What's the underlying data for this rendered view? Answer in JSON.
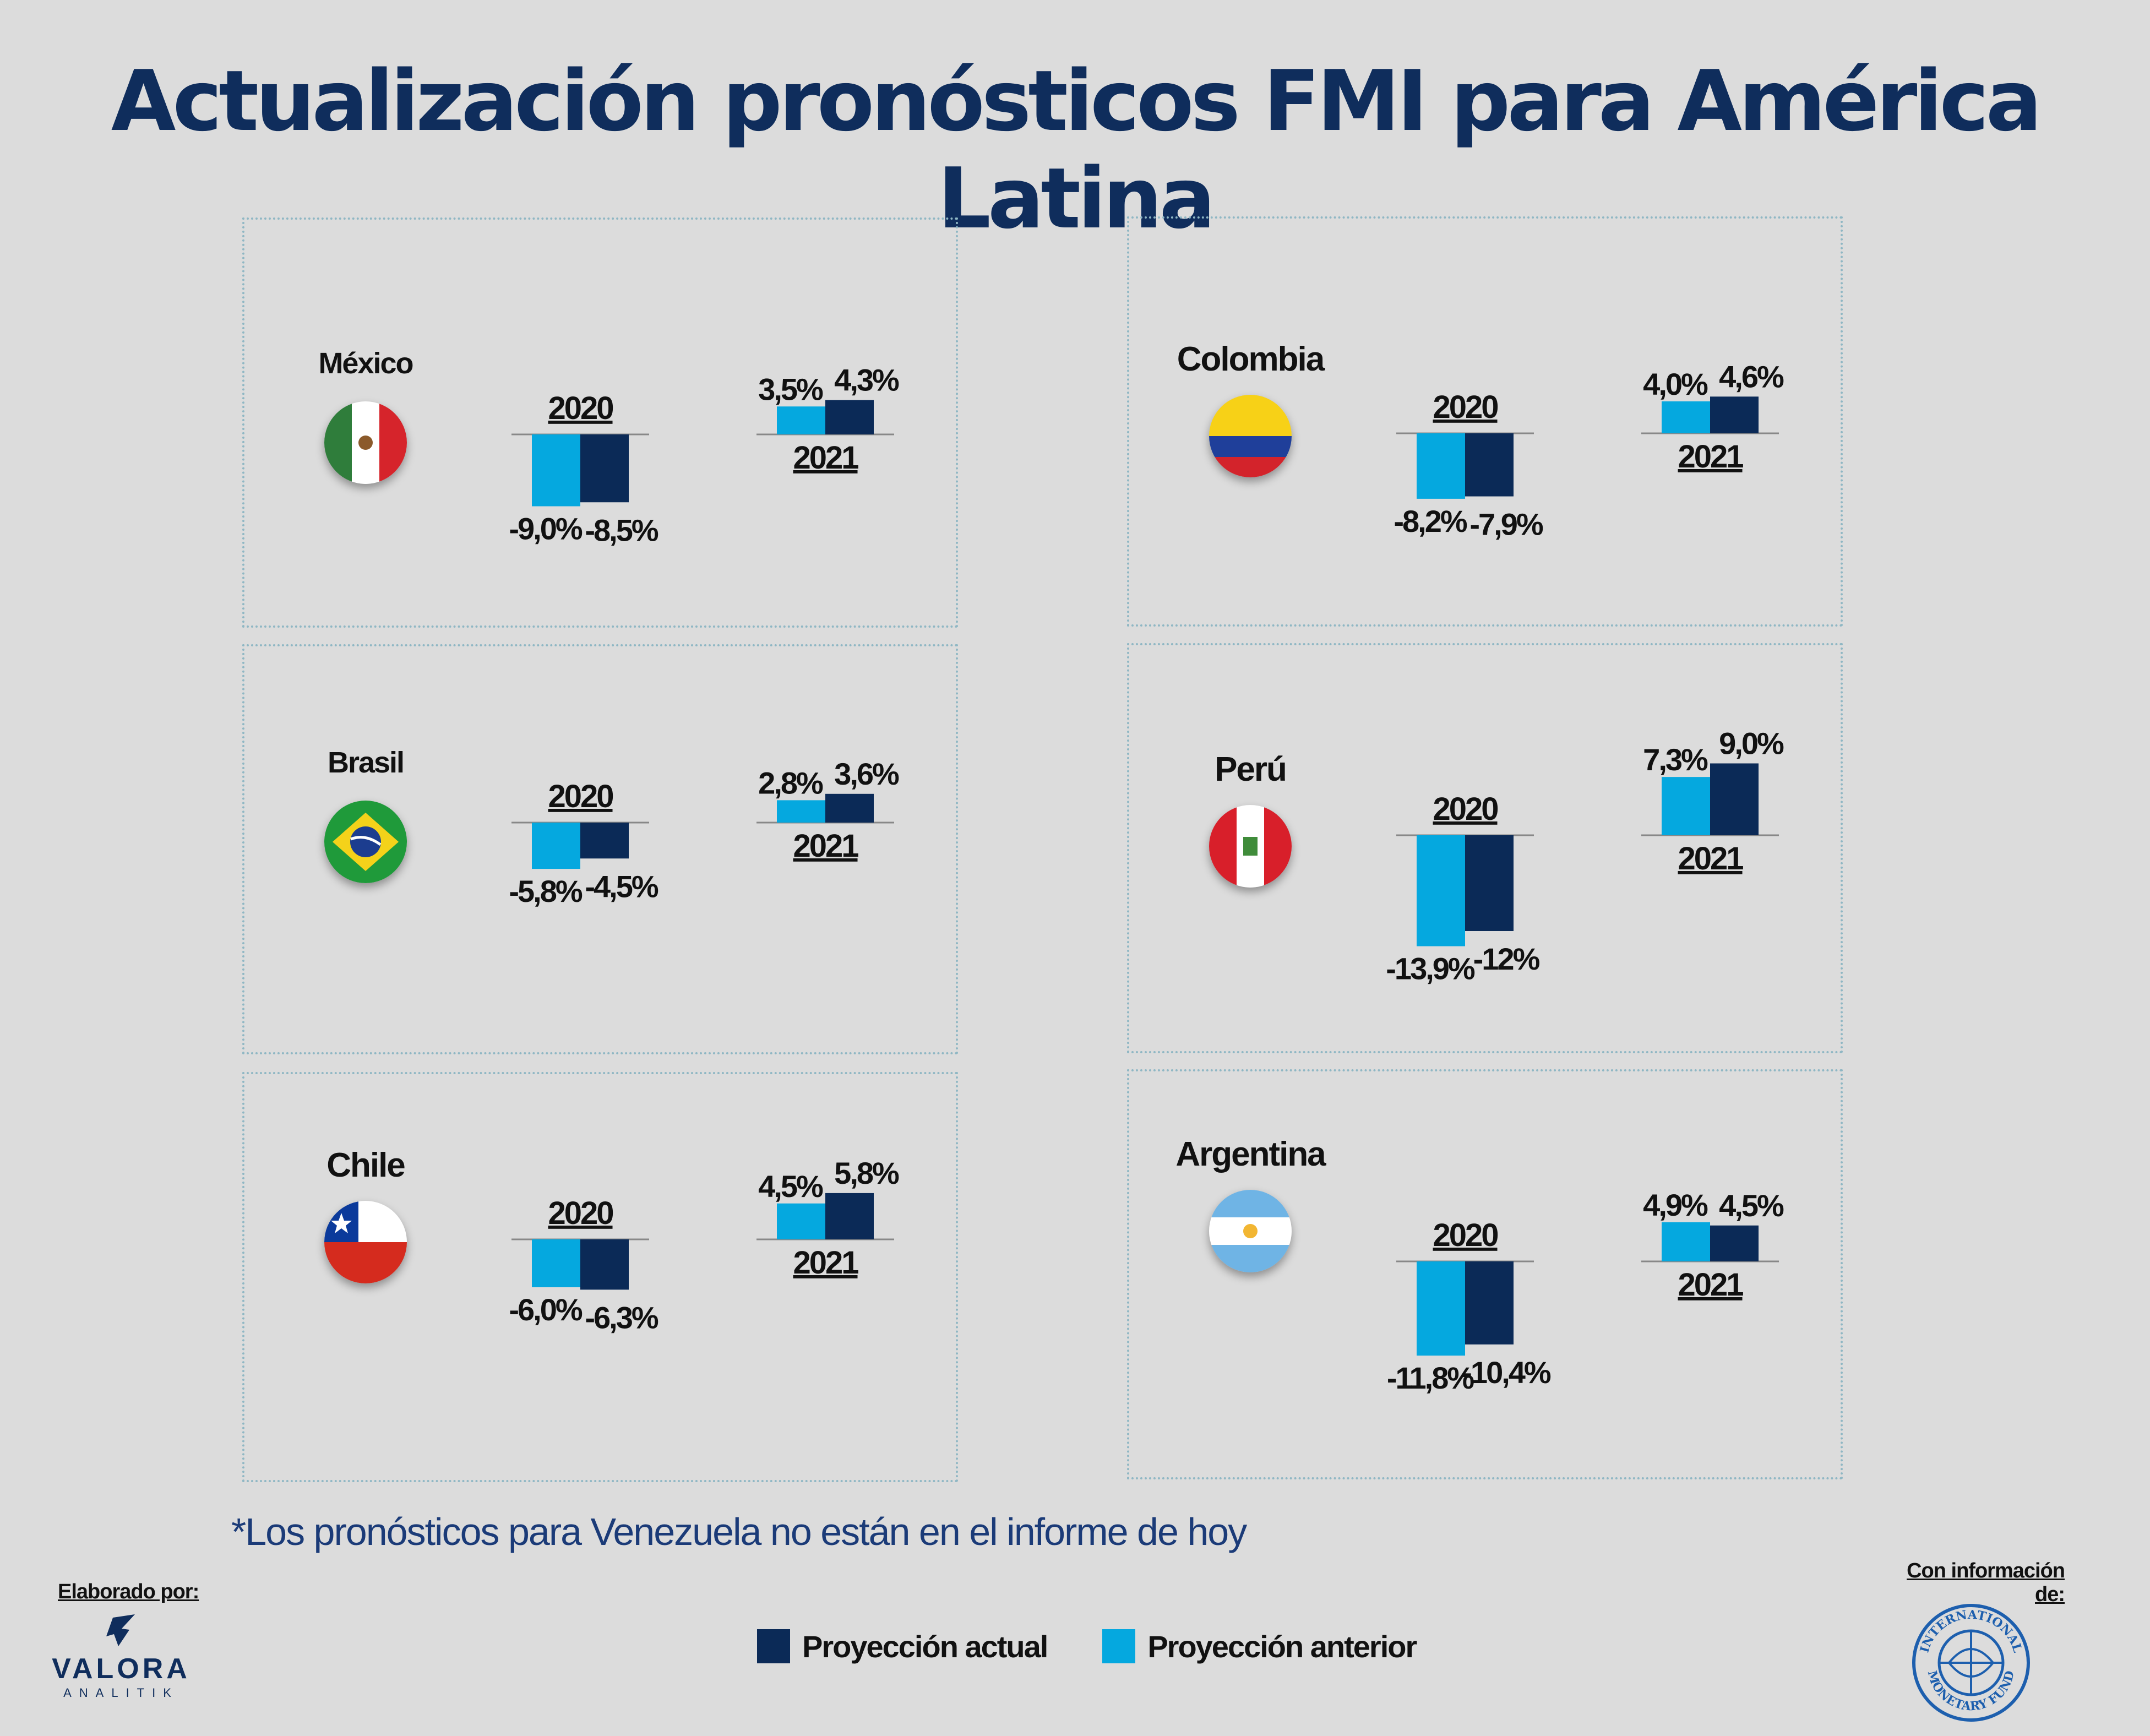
{
  "title": "Actualización pronósticos FMI para América Latina",
  "colors": {
    "actual": "#0b2a57",
    "anterior": "#05a8df",
    "background": "#dcdcdc",
    "title": "#0f2d5c"
  },
  "chart_data": {
    "type": "bar",
    "title": "Actualización pronósticos FMI para América Latina",
    "categories": [
      "2020",
      "2021"
    ],
    "legend": [
      {
        "name": "Proyección actual",
        "color": "#0b2a57"
      },
      {
        "name": "Proyección anterior",
        "color": "#05a8df"
      }
    ],
    "panels": [
      {
        "country": "México",
        "flag": "mexico-flag",
        "series": [
          {
            "name": "Proyección anterior",
            "values": [
              -9.0,
              3.5
            ],
            "labels": [
              "-9,0%",
              "3,5%"
            ]
          },
          {
            "name": "Proyección actual",
            "values": [
              -8.5,
              4.3
            ],
            "labels": [
              "-8,5%",
              "4,3%"
            ]
          }
        ]
      },
      {
        "country": "Colombia",
        "flag": "colombia-flag",
        "series": [
          {
            "name": "Proyección anterior",
            "values": [
              -8.2,
              4.0
            ],
            "labels": [
              "-8,2%",
              "4,0%"
            ]
          },
          {
            "name": "Proyección actual",
            "values": [
              -7.9,
              4.6
            ],
            "labels": [
              "-7,9%",
              "4,6%"
            ]
          }
        ]
      },
      {
        "country": "Brasil",
        "flag": "brazil-flag",
        "series": [
          {
            "name": "Proyección anterior",
            "values": [
              -5.8,
              2.8
            ],
            "labels": [
              "-5,8%",
              "2,8%"
            ]
          },
          {
            "name": "Proyección actual",
            "values": [
              -4.5,
              3.6
            ],
            "labels": [
              "-4,5%",
              "3,6%"
            ]
          }
        ]
      },
      {
        "country": "Perú",
        "flag": "peru-flag",
        "series": [
          {
            "name": "Proyección anterior",
            "values": [
              -13.9,
              7.3
            ],
            "labels": [
              "-13,9%",
              "7,3%"
            ]
          },
          {
            "name": "Proyección actual",
            "values": [
              -12.0,
              9.0
            ],
            "labels": [
              "-12%",
              "9,0%"
            ]
          }
        ]
      },
      {
        "country": "Chile",
        "flag": "chile-flag",
        "series": [
          {
            "name": "Proyección anterior",
            "values": [
              -6.0,
              4.5
            ],
            "labels": [
              "-6,0%",
              "4,5%"
            ]
          },
          {
            "name": "Proyección actual",
            "values": [
              -6.3,
              5.8
            ],
            "labels": [
              "-6,3%",
              "5,8%"
            ]
          }
        ]
      },
      {
        "country": "Argentina",
        "flag": "argentina-flag",
        "series": [
          {
            "name": "Proyección anterior",
            "values": [
              -11.8,
              4.9
            ],
            "labels": [
              "-11,8%",
              "4,9%"
            ]
          },
          {
            "name": "Proyección actual",
            "values": [
              -10.4,
              4.5
            ],
            "labels": [
              "-10,4%",
              "4,5%"
            ]
          }
        ]
      }
    ]
  },
  "footnote": "*Los pronósticos para Venezuela no están en el informe de hoy",
  "credits": {
    "left_label": "Elaborado por:",
    "logo_name": "VALORA",
    "logo_sub": "ANALITIK",
    "right_label": "Con información de:",
    "right_logo_text": "INTERNATIONAL MONETARY FUND"
  }
}
